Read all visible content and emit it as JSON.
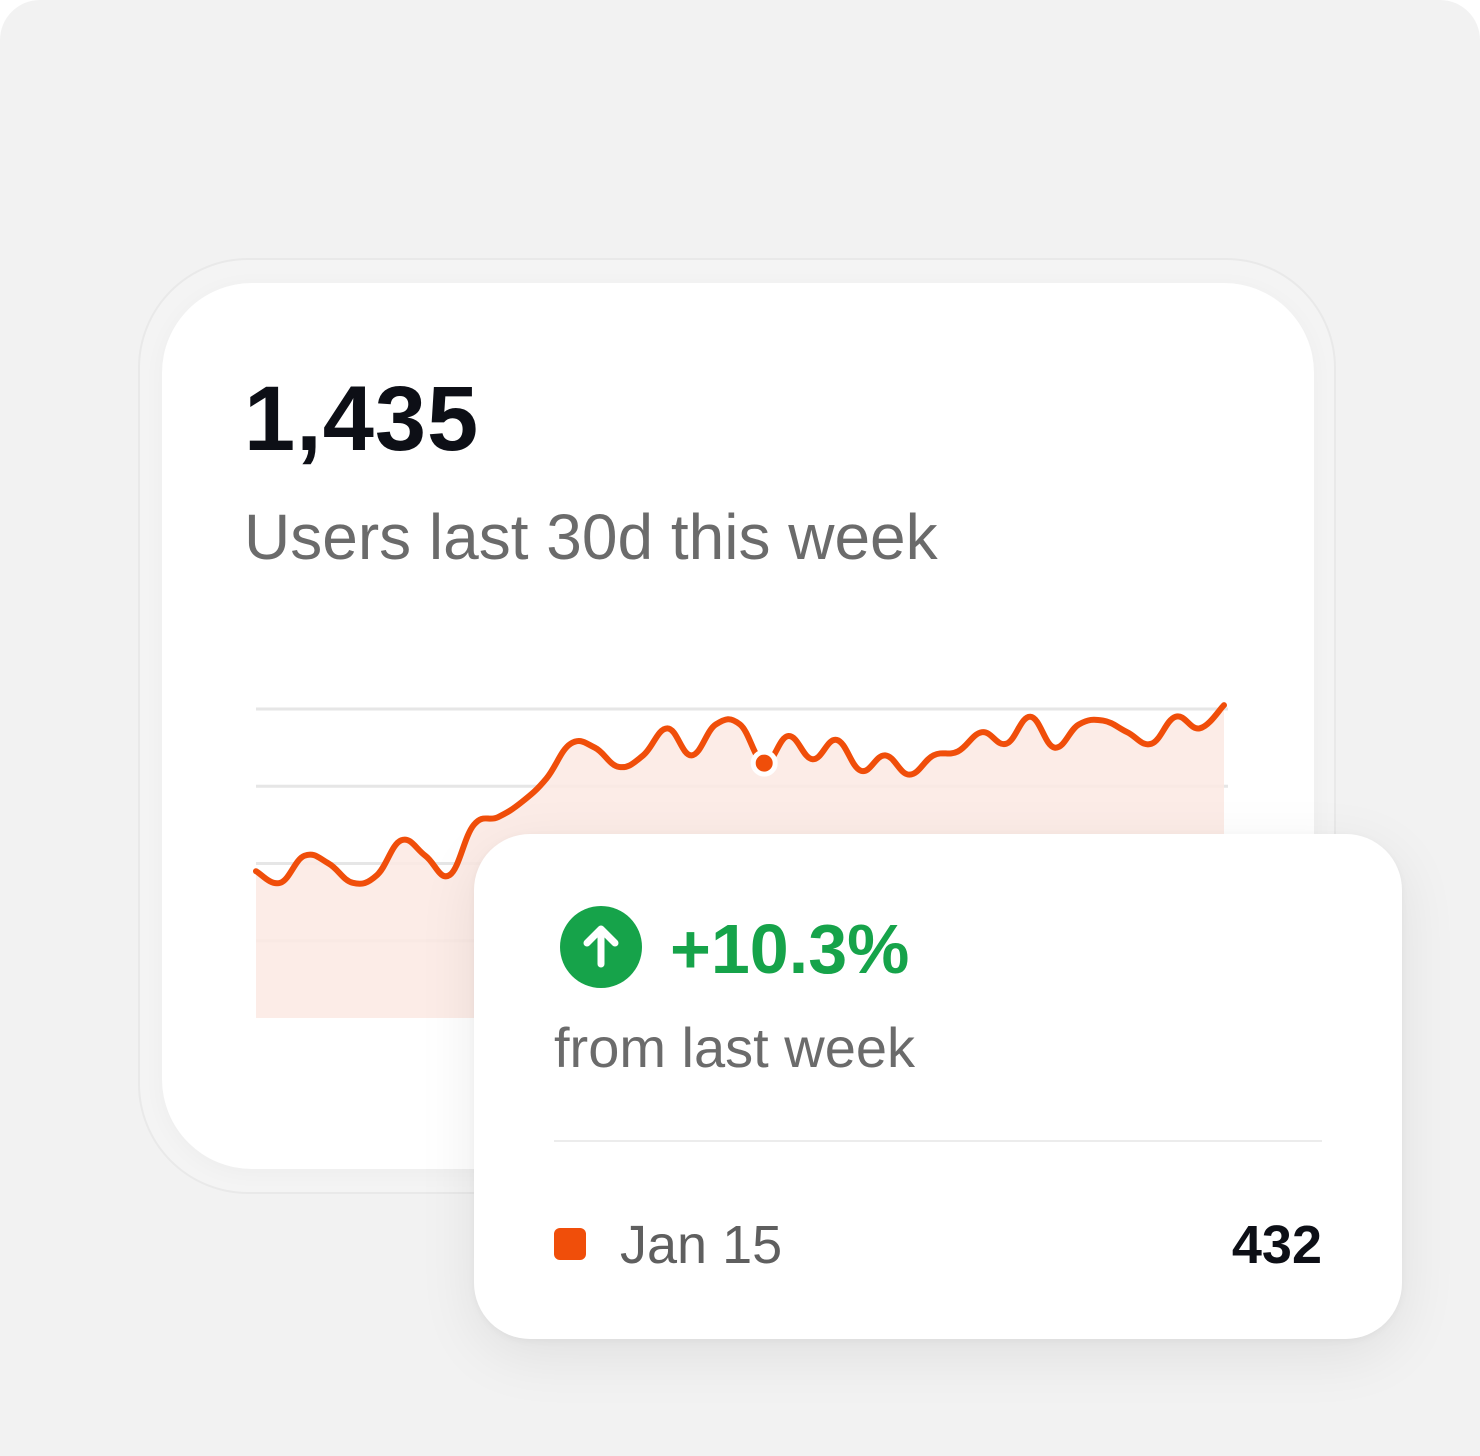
{
  "metric": {
    "value": "1,435",
    "label": "Users last 30d this week"
  },
  "colors": {
    "series": "#f04e0a",
    "positive": "#16a34a",
    "grid": "#e6e6e6",
    "fill": "#fbe9e3"
  },
  "chart_data": {
    "type": "line",
    "x": [
      0,
      1,
      2,
      3,
      4,
      5,
      6,
      7,
      8,
      9,
      10,
      11,
      12,
      13,
      14,
      15,
      16,
      17,
      18,
      19,
      20,
      21,
      22,
      23,
      24,
      25,
      26,
      27,
      28,
      29,
      30,
      31,
      32,
      33,
      34,
      35,
      36,
      37,
      38,
      39,
      40
    ],
    "y": [
      58,
      55,
      62,
      60,
      55,
      57,
      66,
      62,
      57,
      70,
      72,
      76,
      82,
      91,
      90,
      85,
      88,
      95,
      88,
      96,
      96,
      86,
      93,
      87,
      92,
      84,
      88,
      83,
      88,
      89,
      94,
      91,
      98,
      90,
      96,
      97,
      94,
      91,
      98,
      95,
      101
    ],
    "highlight_index": 21,
    "ylim": [
      20,
      100
    ],
    "grid": true,
    "area_fill": true
  },
  "tooltip": {
    "icon": "arrow-up-circle-icon",
    "delta": "+10.3%",
    "from_label": "from last week",
    "series_label": "Jan 15",
    "series_value": "432"
  }
}
